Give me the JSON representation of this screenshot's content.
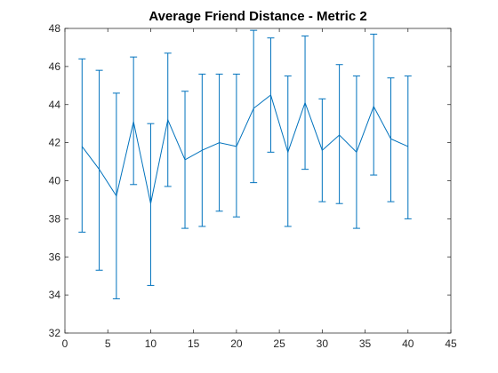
{
  "chart_data": {
    "type": "line",
    "title": "Average Friend Distance - Metric 2",
    "xlabel": "",
    "ylabel": "",
    "xlim": [
      0,
      45
    ],
    "ylim": [
      32,
      48
    ],
    "xticks": [
      0,
      5,
      10,
      15,
      20,
      25,
      30,
      35,
      40,
      45
    ],
    "yticks": [
      32,
      34,
      36,
      38,
      40,
      42,
      44,
      46,
      48
    ],
    "grid": false,
    "legend": "none",
    "color": "#0072BD",
    "series": [
      {
        "x": [
          2,
          4,
          6,
          8,
          10,
          12,
          14,
          16,
          18,
          20,
          22,
          24,
          26,
          28,
          30,
          32,
          34,
          36,
          38,
          40
        ],
        "y": [
          41.8,
          40.6,
          39.2,
          43.1,
          38.8,
          43.2,
          41.1,
          41.6,
          42.0,
          41.8,
          43.8,
          44.5,
          41.5,
          44.1,
          41.6,
          42.4,
          41.5,
          43.9,
          42.2,
          41.8
        ],
        "lower": [
          37.3,
          35.3,
          33.8,
          39.8,
          34.5,
          39.7,
          37.5,
          37.6,
          38.4,
          38.1,
          39.9,
          41.5,
          37.6,
          40.6,
          38.9,
          38.8,
          37.5,
          40.3,
          38.9,
          38.0
        ],
        "upper": [
          46.4,
          45.8,
          44.6,
          46.5,
          43.0,
          46.7,
          44.7,
          45.6,
          45.6,
          45.6,
          47.9,
          47.5,
          45.5,
          47.6,
          44.3,
          46.1,
          45.5,
          47.7,
          45.4,
          45.5
        ]
      }
    ]
  }
}
